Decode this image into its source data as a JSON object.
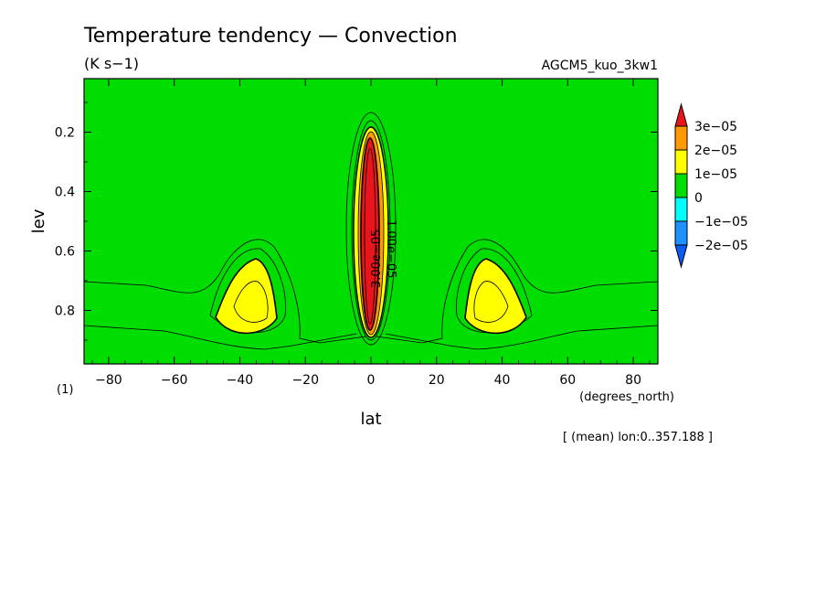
{
  "chart_data": {
    "type": "heatmap",
    "title": "Temperature tendency — Convection",
    "units": "(K s−1)",
    "run_label": "AGCM5_kuo_3kw1",
    "xlabel": "lat",
    "x_units": "(degrees_north)",
    "ylabel": "lev",
    "y_units": "(1)",
    "footnote": "[ (mean) lon:0..357.188 ]",
    "xlim": [
      -87.5,
      87.5
    ],
    "ylim": [
      0.98,
      0.02
    ],
    "x_ticks": [
      -80,
      -60,
      -40,
      -20,
      0,
      20,
      40,
      60,
      80
    ],
    "x_tick_labels": [
      "−80",
      "−60",
      "−40",
      "−20",
      "0",
      "20",
      "40",
      "60",
      "80"
    ],
    "y_ticks": [
      0.2,
      0.4,
      0.6,
      0.8
    ],
    "y_tick_labels": [
      "0.2",
      "0.4",
      "0.6",
      "0.8"
    ],
    "contour_labels": [
      "3.00e−05",
      "1.00e−05"
    ],
    "colorbar": {
      "levels": [
        3e-05,
        2e-05,
        1e-05,
        0,
        -1e-05,
        -2e-05
      ],
      "labels": [
        "3e−05",
        "2e−05",
        "1e−05",
        "0",
        "−1e−05",
        "−2e−05"
      ],
      "colors": [
        "#e8161c",
        "#ff9900",
        "#ffff00",
        "#00dd00",
        "#00ffff",
        "#1e90ff",
        "#0a5cf5"
      ]
    },
    "features": [
      {
        "name": "equatorial-convection-core",
        "lat": 0,
        "lev_top": 0.16,
        "lev_bottom": 0.93,
        "peak": 3e-05
      },
      {
        "name": "southern-heating-lobe",
        "lat": -37,
        "lev_center": 0.8,
        "peak": 1.3e-05
      },
      {
        "name": "northern-heating-lobe",
        "lat": 37,
        "lev_center": 0.8,
        "peak": 1.3e-05
      }
    ]
  }
}
